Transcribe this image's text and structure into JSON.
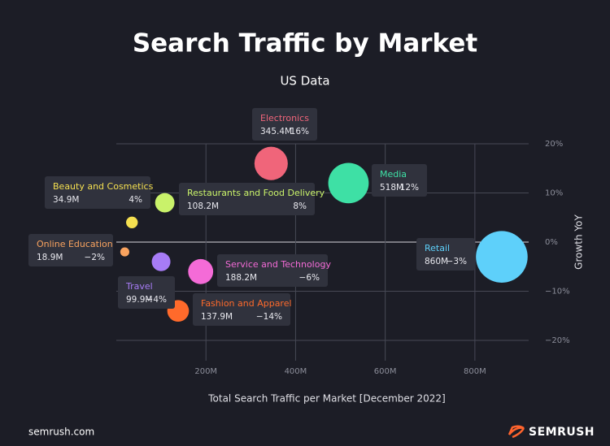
{
  "chart_data": {
    "type": "bubble",
    "title": "Search Traffic by Market",
    "subtitle": "US Data",
    "x_label": "Total Search Traffic per Market [December 2022]",
    "y_label": "Growth YoY",
    "categories": [
      "Electronics",
      "Media",
      "Retail",
      "Beauty and Cosmetics",
      "Restaurants and Food Delivery",
      "Online Education",
      "Travel",
      "Service and Technology",
      "Fashion and Apparel"
    ],
    "x": [
      345.4,
      518,
      860,
      34.9,
      108.2,
      18.9,
      99.9,
      188.2,
      137.9
    ],
    "x_value_labels": [
      "345.4M",
      "518M",
      "860M",
      "34.9M",
      "108.2M",
      "18.9M",
      "99.9M",
      "188.2M",
      "137.9M"
    ],
    "values": [
      16,
      12,
      -3,
      4,
      8,
      -2,
      -4,
      -6,
      -14
    ],
    "value_labels": [
      "16%",
      "12%",
      "−3%",
      "4%",
      "8%",
      "−2%",
      "−4%",
      "−6%",
      "−14%"
    ],
    "colors": [
      "#f0657a",
      "#3ee0a5",
      "#5ed0fa",
      "#f5e050",
      "#c9f26a",
      "#f9a35f",
      "#a77cf6",
      "#f46bd7",
      "#ff6a2b"
    ],
    "xlim": [
      0,
      920
    ],
    "xticks": [
      {
        "value": 200,
        "label": "200M"
      },
      {
        "value": 400,
        "label": "400M"
      },
      {
        "value": 600,
        "label": "600M"
      },
      {
        "value": 800,
        "label": "800M"
      }
    ],
    "ylim": [
      -20,
      20
    ],
    "yticks": [
      {
        "value": 20,
        "label": "20%"
      },
      {
        "value": 10,
        "label": "10%"
      },
      {
        "value": 0,
        "label": "0%"
      },
      {
        "value": -10,
        "label": "−10%"
      },
      {
        "value": -20,
        "label": "−20%"
      }
    ],
    "grid": true
  },
  "footer": {
    "source": "semrush.com",
    "brand": "SEMRUSH"
  }
}
